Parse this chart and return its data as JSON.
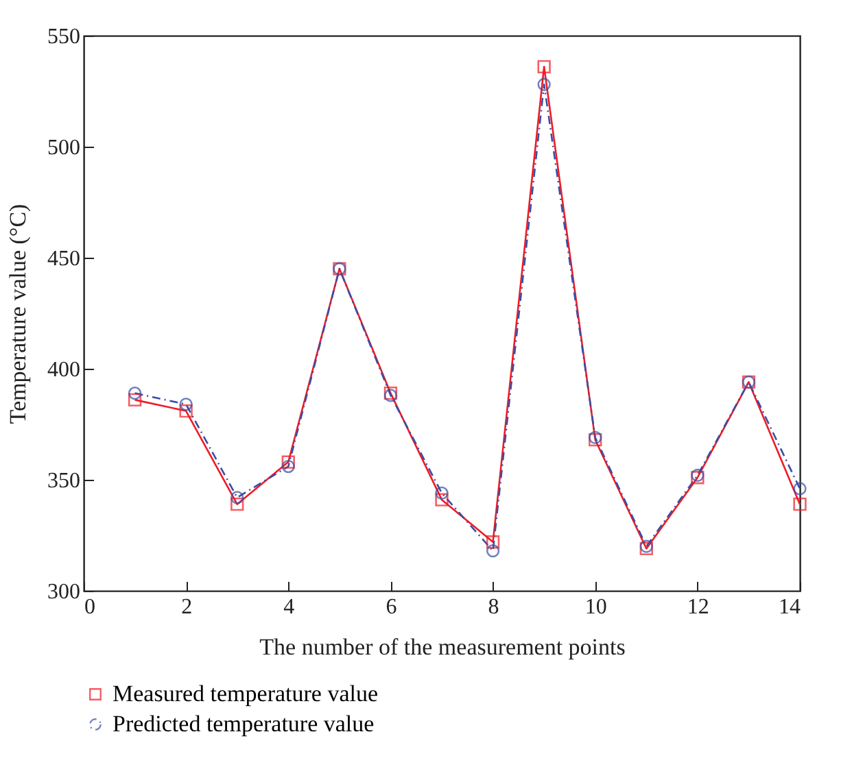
{
  "chart_data": {
    "type": "line",
    "xlabel": "The number of the measurement points",
    "ylabel": "Temperature value (°C)",
    "x": [
      1,
      2,
      3,
      4,
      5,
      6,
      7,
      8,
      9,
      10,
      11,
      12,
      13,
      14
    ],
    "xlim": [
      0,
      14
    ],
    "xticks": [
      0,
      2,
      4,
      6,
      8,
      10,
      12,
      14
    ],
    "ylim": [
      300,
      550
    ],
    "yticks": [
      300,
      350,
      400,
      450,
      500,
      550
    ],
    "grid": false,
    "legend": "bottom",
    "series": [
      {
        "name": "Measured temperature value",
        "color": "#ee1c25",
        "marker": "square",
        "line_style": "solid",
        "values": [
          386,
          381,
          339,
          358,
          445,
          389,
          341,
          322,
          536,
          368,
          319,
          351,
          394,
          339
        ]
      },
      {
        "name": "Predicted temperature value",
        "color": "#3a4ea6",
        "marker": "circle",
        "line_style": "dashed",
        "values": [
          389,
          384,
          342,
          356,
          445,
          388,
          344,
          318,
          528,
          369,
          320,
          352,
          394,
          346
        ]
      }
    ]
  }
}
